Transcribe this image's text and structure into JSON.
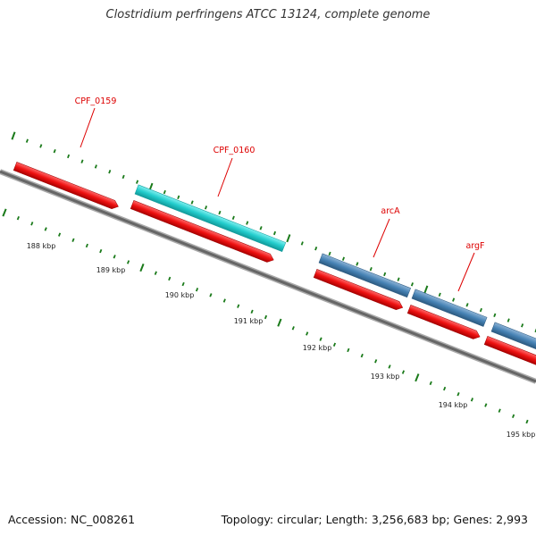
{
  "title": "Clostridium perfringens ATCC 13124, complete genome",
  "footer": {
    "accession": "Accession: NC_008261",
    "topology": "Topology: circular; Length: 3,256,683 bp; Genes: 2,993"
  },
  "colors": {
    "forward_orf": "#ee1111",
    "gene_cyan": "#22cccc",
    "gene_blue": "#4682b4",
    "label_red": "#dd0000",
    "tick_green": "#1a7a1a",
    "backbone": "#777777"
  },
  "scale_labels": [
    "188 kbp",
    "189 kbp",
    "190 kbp",
    "191 kbp",
    "192 kbp",
    "193 kbp",
    "194 kbp",
    "195 kbp"
  ],
  "gene_labels": [
    "CPF_0159",
    "CPF_0160",
    "arcA",
    "argF"
  ]
}
